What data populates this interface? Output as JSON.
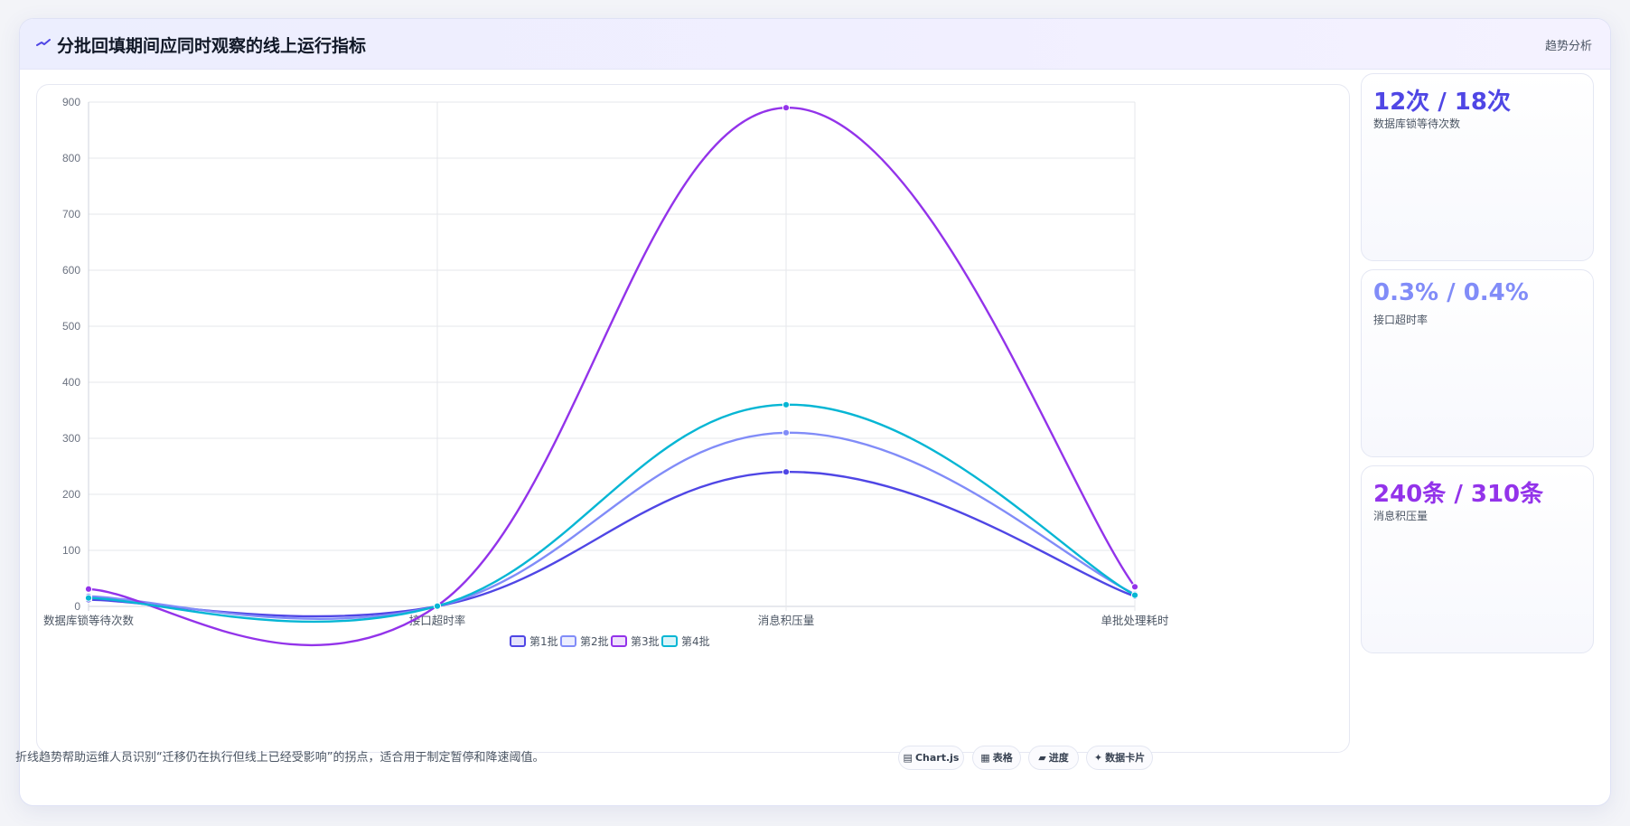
{
  "header": {
    "title": "分批回填期间应同时观察的线上运行指标",
    "tag": "趋势分析"
  },
  "chart_data": {
    "type": "line",
    "categories": [
      "数据库锁等待次数",
      "接口超时率",
      "消息积压量",
      "单批处理耗时"
    ],
    "ylim": [
      0,
      900
    ],
    "yticks": [
      0,
      100,
      200,
      300,
      400,
      500,
      600,
      700,
      800,
      900
    ],
    "grid": true,
    "legend_position": "bottom",
    "series": [
      {
        "name": "第1批",
        "color": "#4f46e5",
        "values": [
          12,
          0.3,
          240,
          18
        ]
      },
      {
        "name": "第2批",
        "color": "#818cf8",
        "values": [
          18,
          0.4,
          310,
          22
        ]
      },
      {
        "name": "第3批",
        "color": "#9333ea",
        "values": [
          31,
          1.2,
          890,
          35
        ]
      },
      {
        "name": "第4批",
        "color": "#06b6d4",
        "values": [
          15,
          0.5,
          360,
          20
        ]
      }
    ]
  },
  "stats": [
    {
      "value": "12次 / 18次",
      "label": "数据库锁等待次数",
      "color": "#4f46e5"
    },
    {
      "value": "0.3% / 0.4%",
      "label": "接口超时率",
      "color": "#818cf8"
    },
    {
      "value": "240条 / 310条",
      "label": "消息积压量",
      "color": "#9333ea"
    }
  ],
  "footer": {
    "note": "折线趋势帮助运维人员识别“迁移仍在执行但线上已经受影响”的拐点，适合用于制定暂停和降速阈值。",
    "chips": [
      {
        "icon": "▤",
        "label": "Chart.js"
      },
      {
        "icon": "▦",
        "label": "表格"
      },
      {
        "icon": "▰",
        "label": "进度"
      },
      {
        "icon": "✦",
        "label": "数据卡片"
      }
    ]
  }
}
